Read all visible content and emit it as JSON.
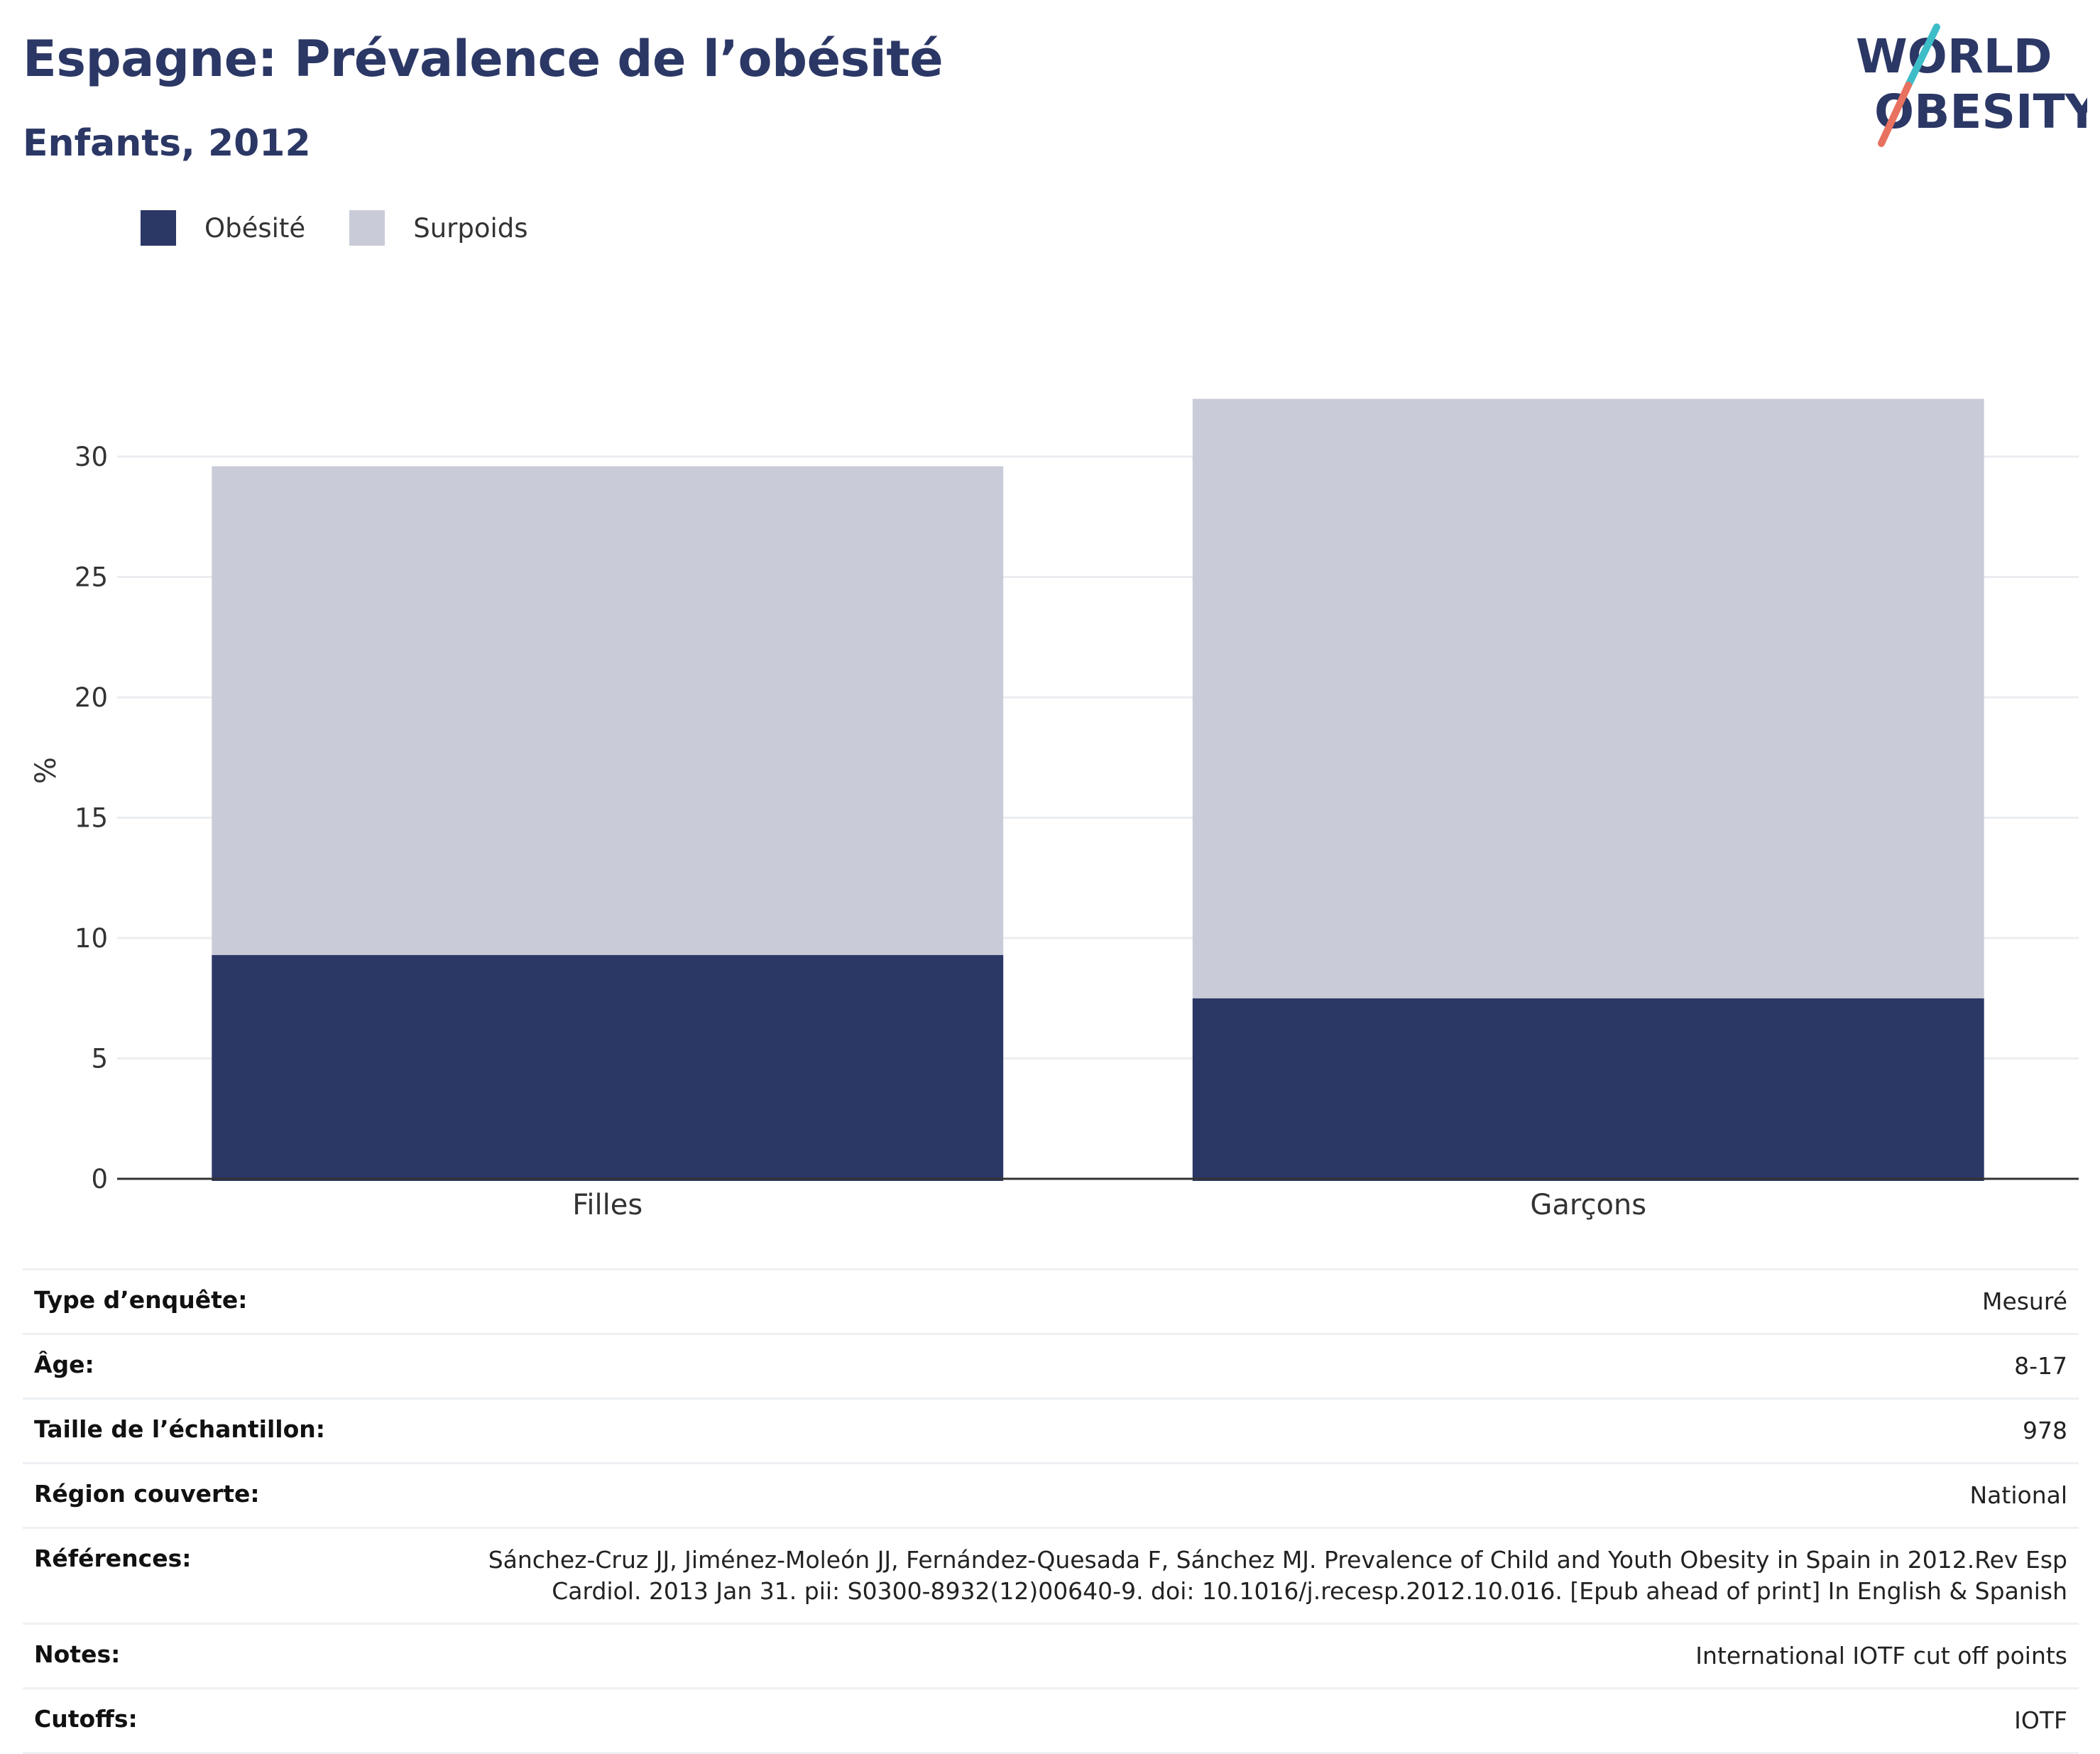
{
  "header": {
    "title": "Espagne: Prévalence de l’obésité",
    "subtitle": "Enfants, 2012"
  },
  "logo": {
    "line1": "WORLD",
    "line2": "OBESITY",
    "colors": {
      "text": "#2b3765",
      "slash_top": "#3dbdc8",
      "slash_bottom": "#e8715f"
    }
  },
  "legend": {
    "items": [
      {
        "label": "Obésité",
        "color": "#2b3765"
      },
      {
        "label": "Surpoids",
        "color": "#c9ccd8"
      }
    ]
  },
  "chart_data": {
    "type": "bar",
    "stacked": true,
    "categories": [
      "Filles",
      "Garçons"
    ],
    "series": [
      {
        "name": "Obésité",
        "color": "#2b3765",
        "values": [
          9.3,
          7.5
        ]
      },
      {
        "name": "Surpoids",
        "color": "#c9ccd8",
        "values": [
          20.3,
          24.9
        ]
      }
    ],
    "ylabel": "%",
    "ylim": [
      0,
      32.4
    ],
    "yticks": [
      0,
      5,
      10,
      15,
      20,
      25,
      30
    ],
    "grid": true,
    "legend_position": "top-left"
  },
  "meta": [
    {
      "key": "Type d’enquête:",
      "value": "Mesuré"
    },
    {
      "key": "Âge:",
      "value": "8-17"
    },
    {
      "key": "Taille de l’échantillon:",
      "value": "978"
    },
    {
      "key": "Région couverte:",
      "value": "National"
    },
    {
      "key": "Références:",
      "value_line1": "Sánchez-Cruz JJ, Jiménez-Moleón JJ, Fernández-Quesada F, Sánchez MJ. Prevalence of Child and Youth Obesity in Spain in 2012.Rev Esp",
      "value_line2": "Cardiol. 2013 Jan 31. pii: S0300-8932(12)00640-9. doi: 10.1016/j.recesp.2012.10.016. [Epub ahead of print] In English & Spanish"
    },
    {
      "key": "Notes:",
      "value": "International IOTF cut off points"
    },
    {
      "key": "Cutoffs:",
      "value": "IOTF"
    }
  ]
}
